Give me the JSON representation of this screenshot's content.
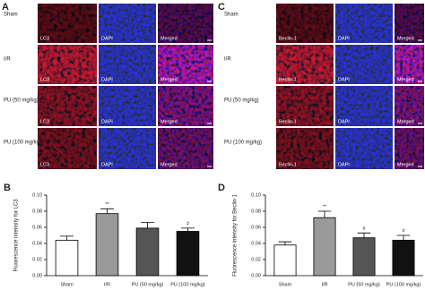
{
  "image_panels": [
    {
      "letter": "A",
      "rows": [
        "Sham",
        "I/R",
        "PU (50 mg/kg)",
        "PU (100 mg/kg)"
      ],
      "channels": [
        "LC3",
        "DAPI",
        "Merged"
      ]
    },
    {
      "letter": "C",
      "rows": [
        "Sham",
        "I/R",
        "PU (50 mg/kg)",
        "PU (100 mg/kg)"
      ],
      "channels": [
        "Beclin-1",
        "DAPI",
        "Merged"
      ]
    }
  ],
  "chart_data": [
    {
      "type": "bar",
      "letter": "B",
      "y_label": "Fluorescence intensity for LC3",
      "categories": [
        "Sham",
        "I/R",
        "PU (50 mg/kg)",
        "PU (100 mg/kg)"
      ],
      "values": [
        0.044,
        0.077,
        0.059,
        0.055
      ],
      "errors": [
        0.005,
        0.006,
        0.007,
        0.004
      ],
      "colors": [
        "#ffffff",
        "#9a9a9a",
        "#555555",
        "#111111"
      ],
      "annotations": [
        null,
        "**",
        null,
        "#"
      ],
      "ylim": [
        0,
        0.1
      ],
      "yticks": [
        {
          "value": 0,
          "label": "0.00"
        },
        {
          "value": 0.02,
          "label": "0.02"
        },
        {
          "value": 0.04,
          "label": "0.04"
        },
        {
          "value": 0.06,
          "label": "0.06"
        },
        {
          "value": 0.08,
          "label": "0.08"
        },
        {
          "value": 0.1,
          "label": "0.10"
        }
      ]
    },
    {
      "type": "bar",
      "letter": "D",
      "y_label": "Fluorescence intensity for Beclin-1",
      "categories": [
        "Sham",
        "I/R",
        "PU (50 mg/kg)",
        "PU (100 mg/kg)"
      ],
      "values": [
        0.038,
        0.072,
        0.047,
        0.044
      ],
      "errors": [
        0.004,
        0.008,
        0.006,
        0.006
      ],
      "colors": [
        "#ffffff",
        "#9a9a9a",
        "#555555",
        "#111111"
      ],
      "annotations": [
        null,
        "**",
        "#",
        "#"
      ],
      "ylim": [
        0,
        0.1
      ],
      "yticks": [
        {
          "value": 0,
          "label": "0.00"
        },
        {
          "value": 0.02,
          "label": "0.02"
        },
        {
          "value": 0.04,
          "label": "0.04"
        },
        {
          "value": 0.06,
          "label": "0.06"
        },
        {
          "value": 0.08,
          "label": "0.08"
        },
        {
          "value": 0.1,
          "label": "0.10"
        }
      ]
    }
  ]
}
